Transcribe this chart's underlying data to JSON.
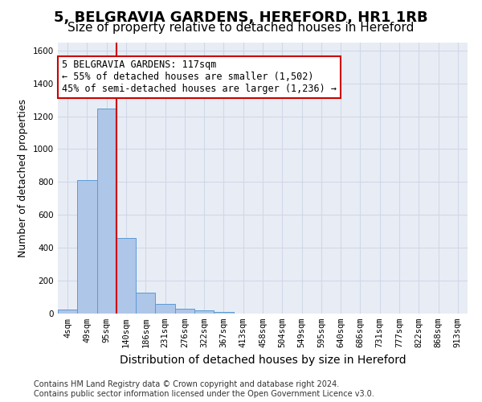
{
  "title": "5, BELGRAVIA GARDENS, HEREFORD, HR1 1RB",
  "subtitle": "Size of property relative to detached houses in Hereford",
  "xlabel": "Distribution of detached houses by size in Hereford",
  "ylabel": "Number of detached properties",
  "bin_labels": [
    "4sqm",
    "49sqm",
    "95sqm",
    "140sqm",
    "186sqm",
    "231sqm",
    "276sqm",
    "322sqm",
    "367sqm",
    "413sqm",
    "458sqm",
    "504sqm",
    "549sqm",
    "595sqm",
    "640sqm",
    "686sqm",
    "731sqm",
    "777sqm",
    "822sqm",
    "868sqm",
    "913sqm"
  ],
  "bar_values": [
    25,
    810,
    1245,
    460,
    125,
    58,
    28,
    18,
    12,
    0,
    0,
    0,
    0,
    0,
    0,
    0,
    0,
    0,
    0,
    0,
    0
  ],
  "bar_color": "#aec6e8",
  "bar_edge_color": "#5b9bd5",
  "vline_color": "#cc0000",
  "annotation_text": "5 BELGRAVIA GARDENS: 117sqm\n← 55% of detached houses are smaller (1,502)\n45% of semi-detached houses are larger (1,236) →",
  "annotation_box_color": "#cc0000",
  "annotation_bg": "#ffffff",
  "ylim": [
    0,
    1650
  ],
  "yticks": [
    0,
    200,
    400,
    600,
    800,
    1000,
    1200,
    1400,
    1600
  ],
  "grid_color": "#d0d8e8",
  "bg_color": "#e8edf5",
  "footnote": "Contains HM Land Registry data © Crown copyright and database right 2024.\nContains public sector information licensed under the Open Government Licence v3.0.",
  "title_fontsize": 13,
  "subtitle_fontsize": 11,
  "xlabel_fontsize": 10,
  "ylabel_fontsize": 9,
  "tick_fontsize": 7.5,
  "annot_fontsize": 8.5,
  "footnote_fontsize": 7
}
